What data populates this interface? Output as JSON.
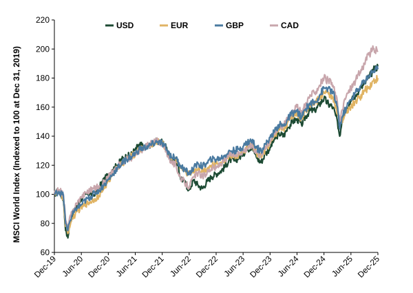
{
  "chart_data": {
    "type": "line",
    "title": "",
    "xlabel": "",
    "ylabel": "MSCI World Index (Indexed to 100 at Dec 31, 2019)",
    "ylim": [
      60,
      220
    ],
    "yticks": [
      60,
      80,
      100,
      120,
      140,
      160,
      180,
      200,
      220
    ],
    "xlim": [
      0,
      72
    ],
    "xticks": [
      {
        "label": "Dec-19",
        "x": 0
      },
      {
        "label": "Jun-20",
        "x": 6
      },
      {
        "label": "Dec-20",
        "x": 12
      },
      {
        "label": "Jun-21",
        "x": 18
      },
      {
        "label": "Dec-21",
        "x": 24
      },
      {
        "label": "Jun-22",
        "x": 30
      },
      {
        "label": "Dec-22",
        "x": 36
      },
      {
        "label": "Jun-23",
        "x": 42
      },
      {
        "label": "Dec-23",
        "x": 48
      },
      {
        "label": "Jun-24",
        "x": 54
      },
      {
        "label": "Dec-24",
        "x": 60
      },
      {
        "label": "Jun-25",
        "x": 66
      },
      {
        "label": "Dec-25",
        "x": 72
      }
    ],
    "legend_position": "top",
    "x": [
      0,
      1,
      2,
      2.5,
      3,
      3.3,
      4,
      5,
      6,
      7,
      8,
      9,
      10,
      11,
      12,
      13,
      14,
      15,
      16,
      17,
      18,
      19,
      20,
      21,
      22,
      23,
      24,
      25,
      26,
      27,
      28,
      29,
      30,
      31,
      32,
      33,
      34,
      35,
      36,
      37,
      38,
      39,
      40,
      41,
      42,
      43,
      44,
      45,
      46,
      47,
      48,
      49,
      50,
      51,
      52,
      53,
      54,
      55,
      56,
      57,
      58,
      59,
      60,
      61,
      62,
      63,
      63.5,
      64,
      65,
      66,
      67,
      68,
      69,
      70,
      71,
      72
    ],
    "series": [
      {
        "name": "USD",
        "color": "#1c4a33",
        "values": [
          100,
          103,
          96,
          75,
          70,
          78,
          86,
          92,
          97,
          100,
          101,
          99,
          105,
          110,
          113,
          117,
          120,
          124,
          126,
          127,
          131,
          134,
          133,
          134,
          135,
          137,
          136,
          132,
          122,
          125,
          112,
          108,
          103,
          110,
          106,
          104,
          109,
          112,
          114,
          116,
          119,
          124,
          123,
          125,
          128,
          131,
          133,
          125,
          122,
          128,
          132,
          138,
          142,
          140,
          146,
          150,
          152,
          148,
          154,
          158,
          157,
          162,
          166,
          162,
          160,
          150,
          140,
          151,
          160,
          164,
          168,
          172,
          176,
          180,
          186,
          188
        ]
      },
      {
        "name": "EUR",
        "color": "#e0b464",
        "values": [
          100,
          102,
          97,
          78,
          73,
          78,
          83,
          88,
          91,
          93,
          95,
          97,
          99,
          104,
          109,
          114,
          118,
          121,
          124,
          126,
          128,
          131,
          132,
          134,
          135,
          136,
          135,
          131,
          125,
          124,
          118,
          116,
          114,
          117,
          118,
          116,
          118,
          120,
          121,
          122,
          124,
          127,
          126,
          127,
          129,
          132,
          134,
          128,
          126,
          131,
          135,
          140,
          146,
          145,
          150,
          154,
          156,
          152,
          158,
          163,
          163,
          166,
          170,
          169,
          167,
          155,
          150,
          150,
          156,
          160,
          164,
          167,
          171,
          174,
          178,
          180
        ]
      },
      {
        "name": "GBP",
        "color": "#4a7aa0",
        "values": [
          100,
          102,
          99,
          80,
          75,
          80,
          86,
          90,
          93,
          96,
          98,
          101,
          103,
          106,
          110,
          114,
          118,
          121,
          124,
          126,
          128,
          131,
          132,
          133,
          135,
          136,
          135,
          131,
          126,
          125,
          120,
          117,
          114,
          118,
          121,
          119,
          122,
          124,
          124,
          125,
          127,
          130,
          130,
          131,
          133,
          136,
          137,
          132,
          130,
          135,
          139,
          143,
          148,
          147,
          152,
          156,
          157,
          153,
          159,
          163,
          163,
          168,
          173,
          173,
          170,
          160,
          145,
          153,
          160,
          165,
          170,
          174,
          178,
          182,
          185,
          186
        ]
      },
      {
        "name": "CAD",
        "color": "#c8a6ac",
        "values": [
          100,
          103,
          100,
          82,
          76,
          82,
          88,
          94,
          98,
          101,
          103,
          104,
          106,
          108,
          112,
          116,
          119,
          122,
          124,
          125,
          127,
          130,
          132,
          134,
          136,
          137,
          135,
          129,
          122,
          120,
          112,
          108,
          105,
          112,
          115,
          112,
          115,
          118,
          118,
          121,
          124,
          128,
          127,
          128,
          130,
          132,
          134,
          129,
          127,
          133,
          137,
          142,
          148,
          147,
          153,
          158,
          160,
          156,
          163,
          168,
          170,
          175,
          180,
          178,
          175,
          163,
          148,
          158,
          168,
          173,
          178,
          184,
          190,
          196,
          200,
          198
        ]
      }
    ]
  }
}
